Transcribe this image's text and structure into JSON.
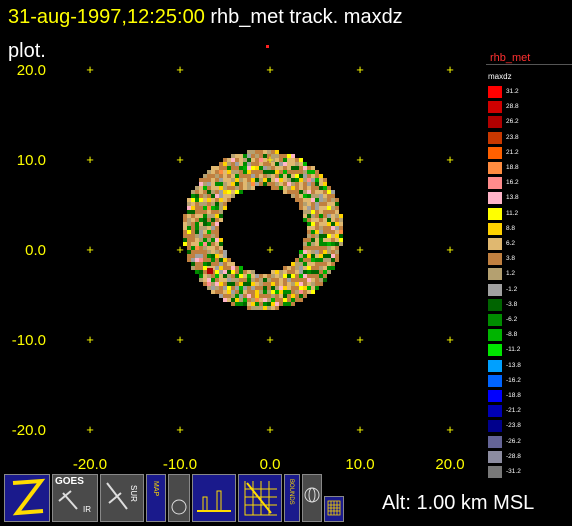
{
  "title": {
    "timestamp": "31-aug-1997,12:25:00",
    "rest": "  rhb_met track.  maxdz",
    "line2": "plot."
  },
  "axes": {
    "y_ticks": [
      "20.0",
      "10.0",
      "0.0",
      "-10.0",
      "-20.0"
    ],
    "x_ticks": [
      "-20.0",
      "-10.0",
      "0.0",
      "10.0",
      "20.0"
    ]
  },
  "legend": {
    "title": "rhb_met",
    "subtitle": "maxdz",
    "entries": [
      {
        "label": "31.2",
        "color": "#ff0000"
      },
      {
        "label": "28.8",
        "color": "#d00000"
      },
      {
        "label": "26.2",
        "color": "#b00000"
      },
      {
        "label": "23.8",
        "color": "#c83800"
      },
      {
        "label": "21.2",
        "color": "#ff6000"
      },
      {
        "label": "18.8",
        "color": "#ff8c40"
      },
      {
        "label": "16.2",
        "color": "#ff8c8c"
      },
      {
        "label": "13.8",
        "color": "#ffb4c8"
      },
      {
        "label": "11.2",
        "color": "#ffff00"
      },
      {
        "label": "8.8",
        "color": "#ffd200"
      },
      {
        "label": "6.2",
        "color": "#e0b870"
      },
      {
        "label": "3.8",
        "color": "#c08040"
      },
      {
        "label": "1.2",
        "color": "#b4a070"
      },
      {
        "label": "-1.2",
        "color": "#a0a0a0"
      },
      {
        "label": "-3.8",
        "color": "#006400"
      },
      {
        "label": "-6.2",
        "color": "#008c00"
      },
      {
        "label": "-8.8",
        "color": "#00b400"
      },
      {
        "label": "-11.2",
        "color": "#00e600"
      },
      {
        "label": "-13.8",
        "color": "#00a0ff"
      },
      {
        "label": "-16.2",
        "color": "#0064ff"
      },
      {
        "label": "-18.8",
        "color": "#0000ff"
      },
      {
        "label": "-21.2",
        "color": "#0000b4"
      },
      {
        "label": "-23.8",
        "color": "#00008c"
      },
      {
        "label": "-26.2",
        "color": "#646496"
      },
      {
        "label": "-28.8",
        "color": "#8c8ca0"
      },
      {
        "label": "-31.2",
        "color": "#787878"
      }
    ]
  },
  "toolbar": {
    "goes_label": "GOES",
    "ir_label": "IR",
    "sur_label": "SUR",
    "map_label": "MAP",
    "bounds_label": "BOUNDS"
  },
  "altitude": "Alt: 1.00 km MSL",
  "colors": {
    "axis": "#ffff00",
    "toolbar_blue": "#1a1a8c",
    "toolbar_gray": "#4a4a4a"
  }
}
